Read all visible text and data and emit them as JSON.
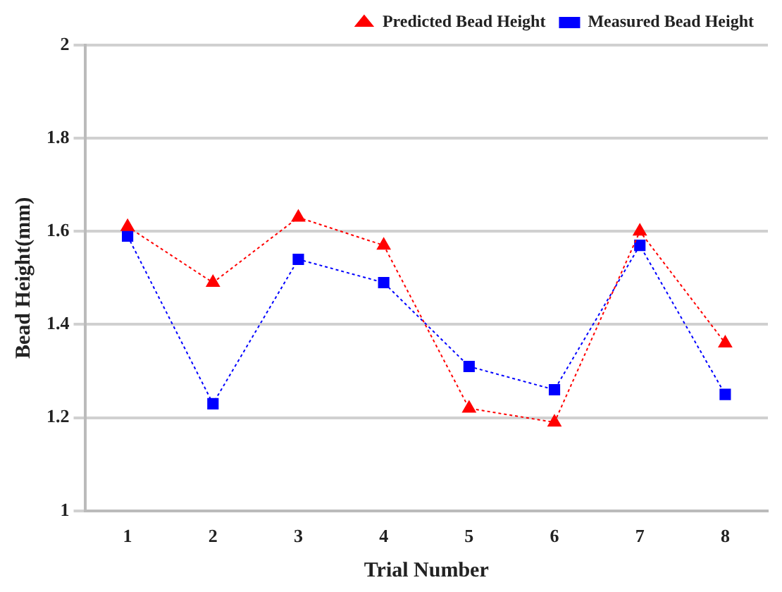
{
  "chart_data": {
    "type": "line",
    "xlabel": "Trial Number",
    "ylabel": "Bead Height(mm)",
    "categories": [
      "1",
      "2",
      "3",
      "4",
      "5",
      "6",
      "7",
      "8"
    ],
    "series": [
      {
        "name": "Predicted Bead Height",
        "color": "#ff0000",
        "marker": "triangle",
        "values": [
          1.61,
          1.49,
          1.63,
          1.57,
          1.22,
          1.19,
          1.6,
          1.36
        ]
      },
      {
        "name": "Measured Bead Height",
        "color": "#0000ff",
        "marker": "square",
        "values": [
          1.59,
          1.23,
          1.54,
          1.49,
          1.31,
          1.26,
          1.57,
          1.25
        ]
      }
    ],
    "ylim": [
      1,
      2
    ],
    "yticks": [
      1,
      1.2,
      1.4,
      1.6,
      1.8,
      2
    ],
    "grid": "y",
    "legend": "top right",
    "line_style": "dotted"
  }
}
